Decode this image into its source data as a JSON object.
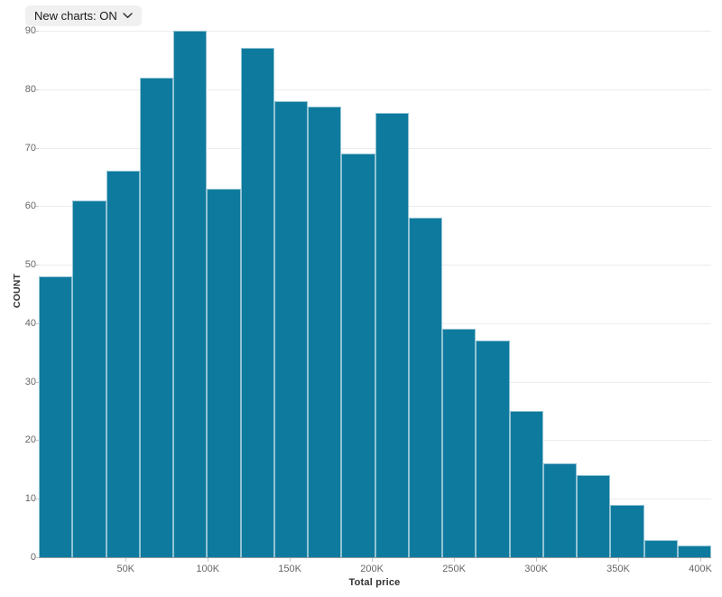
{
  "controls": {
    "new_charts_toggle": {
      "label": "New charts: ON",
      "state": "ON"
    }
  },
  "chart_data": {
    "type": "bar",
    "subtype": "histogram",
    "title": "",
    "xlabel": "Total price",
    "ylabel": "COUNT",
    "values": [
      48,
      61,
      66,
      82,
      90,
      63,
      87,
      78,
      77,
      69,
      76,
      58,
      39,
      37,
      25,
      16,
      14,
      9,
      3,
      2
    ],
    "bin_count": 20,
    "xlim": [
      -2900,
      406600
    ],
    "ylim": [
      0,
      90
    ],
    "xticks": [
      {
        "value": 50000,
        "label": "50K"
      },
      {
        "value": 100000,
        "label": "100K"
      },
      {
        "value": 150000,
        "label": "150K"
      },
      {
        "value": 200000,
        "label": "200K"
      },
      {
        "value": 250000,
        "label": "250K"
      },
      {
        "value": 300000,
        "label": "300K"
      },
      {
        "value": 350000,
        "label": "350K"
      },
      {
        "value": 400000,
        "label": "400K"
      }
    ],
    "yticks": [
      0,
      10,
      20,
      30,
      40,
      50,
      60,
      70,
      80,
      90
    ],
    "grid": "horizontal",
    "legend": "none",
    "colors": {
      "bar_fill": "#0e7a9e",
      "bar_stroke": "rgba(255,255,255,0.55)",
      "gridline": "#ececec",
      "axis_line": "#9b9b9b",
      "tick_mark": "#c9c9c9",
      "tick_text": "#666666",
      "axis_title_text": "#333333",
      "toggle_bg": "#f0f0f1",
      "toggle_text": "#1a1a1a"
    }
  }
}
